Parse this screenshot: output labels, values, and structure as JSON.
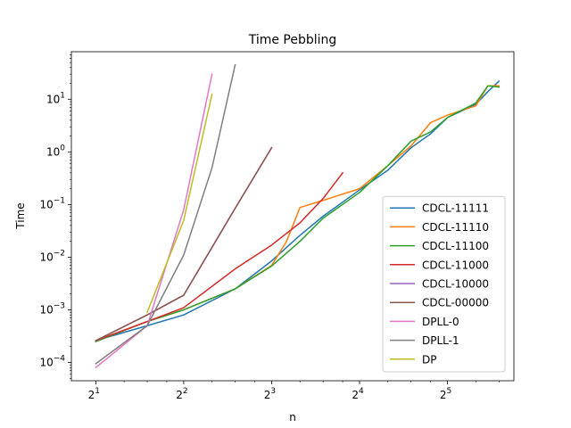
{
  "chart_data": {
    "type": "line",
    "title": "Time Pebbling",
    "xlabel": "n",
    "ylabel": "Time",
    "xscale": "log2",
    "yscale": "log10",
    "xlim": [
      1.65,
      54
    ],
    "ylim": [
      4.5e-05,
      80
    ],
    "x_ticks": [
      {
        "value": 2,
        "base": "2",
        "exp": "1"
      },
      {
        "value": 4,
        "base": "2",
        "exp": "2"
      },
      {
        "value": 8,
        "base": "2",
        "exp": "3"
      },
      {
        "value": 16,
        "base": "2",
        "exp": "4"
      },
      {
        "value": 32,
        "base": "2",
        "exp": "5"
      }
    ],
    "y_ticks": [
      {
        "value": 0.0001,
        "base": "10",
        "exp": "−4"
      },
      {
        "value": 0.001,
        "base": "10",
        "exp": "−3"
      },
      {
        "value": 0.01,
        "base": "10",
        "exp": "−2"
      },
      {
        "value": 0.1,
        "base": "10",
        "exp": "−1"
      },
      {
        "value": 1,
        "base": "10",
        "exp": "0"
      },
      {
        "value": 10,
        "base": "10",
        "exp": "1"
      }
    ],
    "legend_position": "lower right",
    "grid": false,
    "series": [
      {
        "name": "CDCL-11111",
        "color": "#1f77b4",
        "x": [
          2,
          3,
          4,
          6,
          8,
          10,
          12,
          16,
          20,
          24,
          28,
          32,
          40,
          44,
          48
        ],
        "y": [
          0.00026,
          0.0005,
          0.0008,
          0.0025,
          0.0085,
          0.026,
          0.06,
          0.19,
          0.45,
          1.2,
          2.2,
          4.5,
          8.0,
          14.0,
          22.0
        ]
      },
      {
        "name": "CDCL-11110",
        "color": "#ff7f0e",
        "x": [
          2,
          3,
          4,
          6,
          8,
          9,
          10,
          12,
          16,
          20,
          24,
          28,
          32,
          40,
          44,
          48
        ],
        "y": [
          0.00025,
          0.0006,
          0.001,
          0.0025,
          0.007,
          0.02,
          0.088,
          0.12,
          0.2,
          0.55,
          1.3,
          3.6,
          5.0,
          7.5,
          18.0,
          18.0
        ]
      },
      {
        "name": "CDCL-11100",
        "color": "#2ca02c",
        "x": [
          2,
          3,
          4,
          6,
          8,
          10,
          12,
          16,
          20,
          24,
          28,
          32,
          40,
          44,
          48
        ],
        "y": [
          0.00025,
          0.0006,
          0.001,
          0.0025,
          0.0068,
          0.02,
          0.055,
          0.17,
          0.55,
          1.6,
          2.4,
          4.5,
          8.5,
          18.0,
          17.0
        ]
      },
      {
        "name": "CDCL-11000",
        "color": "#d62728",
        "x": [
          2,
          3,
          4,
          6,
          8,
          10,
          12,
          14
        ],
        "y": [
          0.00026,
          0.0006,
          0.0011,
          0.006,
          0.017,
          0.045,
          0.13,
          0.4
        ]
      },
      {
        "name": "CDCL-10000",
        "color": "#9467bd",
        "x": [
          2,
          3,
          4,
          6,
          8
        ],
        "y": [
          0.00026,
          0.0008,
          0.0019,
          0.085,
          1.2
        ]
      },
      {
        "name": "CDCL-00000",
        "color": "#8c564b",
        "x": [
          2,
          3,
          4,
          6,
          8
        ],
        "y": [
          0.00026,
          0.0008,
          0.0019,
          0.085,
          1.2
        ]
      },
      {
        "name": "DPLL-0",
        "color": "#e377c2",
        "x": [
          2,
          3,
          4,
          5
        ],
        "y": [
          8e-05,
          0.0005,
          0.08,
          30.0
        ]
      },
      {
        "name": "DPLL-1",
        "color": "#7f7f7f",
        "x": [
          2,
          3,
          4,
          5,
          6
        ],
        "y": [
          9.5e-05,
          0.0005,
          0.011,
          0.5,
          45.0
        ]
      },
      {
        "name": "DP",
        "color": "#bcbd22",
        "x": [
          3,
          4,
          5
        ],
        "y": [
          0.0009,
          0.05,
          12.5
        ]
      }
    ]
  }
}
